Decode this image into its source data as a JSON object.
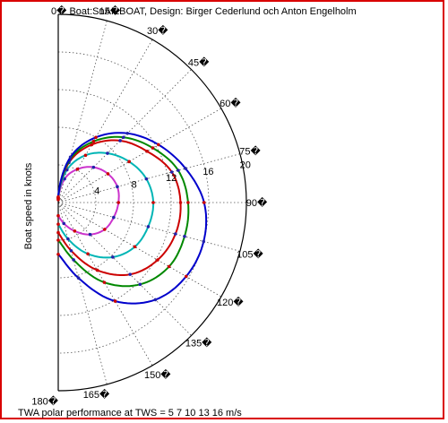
{
  "chart_data": {
    "type": "line",
    "title": "0�   Boat:SnAILBOAT, Design: Birger Cederlund och Anton Engelholm",
    "ylabel": "Boat speed in knots",
    "xlabel": "TWA polar performance at TWS = 5   7  10  13  16 m/s",
    "radius_max": 20,
    "angle_range": [
      0,
      180
    ],
    "grid": true,
    "radial_rings": [
      4,
      8,
      12,
      16,
      20
    ],
    "radial_tick_labels": [
      "4",
      "8",
      "12",
      "16",
      "20"
    ],
    "angle_ticks": [
      15,
      30,
      45,
      60,
      75,
      90,
      105,
      120,
      135,
      150,
      165,
      180
    ],
    "angle_tick_labels": [
      "15�",
      "30�",
      "45�",
      "60�",
      "75�",
      "90�",
      "105�",
      "120�",
      "135�",
      "150�",
      "165�",
      "180�"
    ],
    "x": [
      0,
      15,
      30,
      45,
      60,
      75,
      90,
      105,
      120,
      135,
      150,
      165,
      180
    ],
    "series": [
      {
        "color": "#cc33cc",
        "values": [
          0.3,
          2.6,
          4.1,
          5.3,
          6.1,
          6.5,
          6.4,
          6.1,
          5.7,
          4.8,
          3.5,
          2.3,
          1.4
        ]
      },
      {
        "color": "#00b5b5",
        "values": [
          0.4,
          3.6,
          5.8,
          7.4,
          8.7,
          9.7,
          10.1,
          9.9,
          9.4,
          8.2,
          6.3,
          4.0,
          2.3
        ]
      },
      {
        "color": "#cc0000",
        "values": [
          0.5,
          4.4,
          7.1,
          9.3,
          10.9,
          12.5,
          13.0,
          12.9,
          12.2,
          10.8,
          8.3,
          5.3,
          3.2
        ]
      },
      {
        "color": "#008800",
        "values": [
          0.5,
          4.7,
          7.5,
          9.8,
          11.6,
          13.2,
          13.8,
          13.9,
          13.6,
          12.3,
          9.8,
          6.3,
          4.0
        ]
      },
      {
        "color": "#0000cc",
        "values": [
          0.6,
          5.0,
          8.0,
          10.4,
          12.3,
          14.0,
          15.5,
          16.0,
          15.7,
          14.6,
          12.1,
          8.3,
          5.5
        ]
      }
    ]
  }
}
